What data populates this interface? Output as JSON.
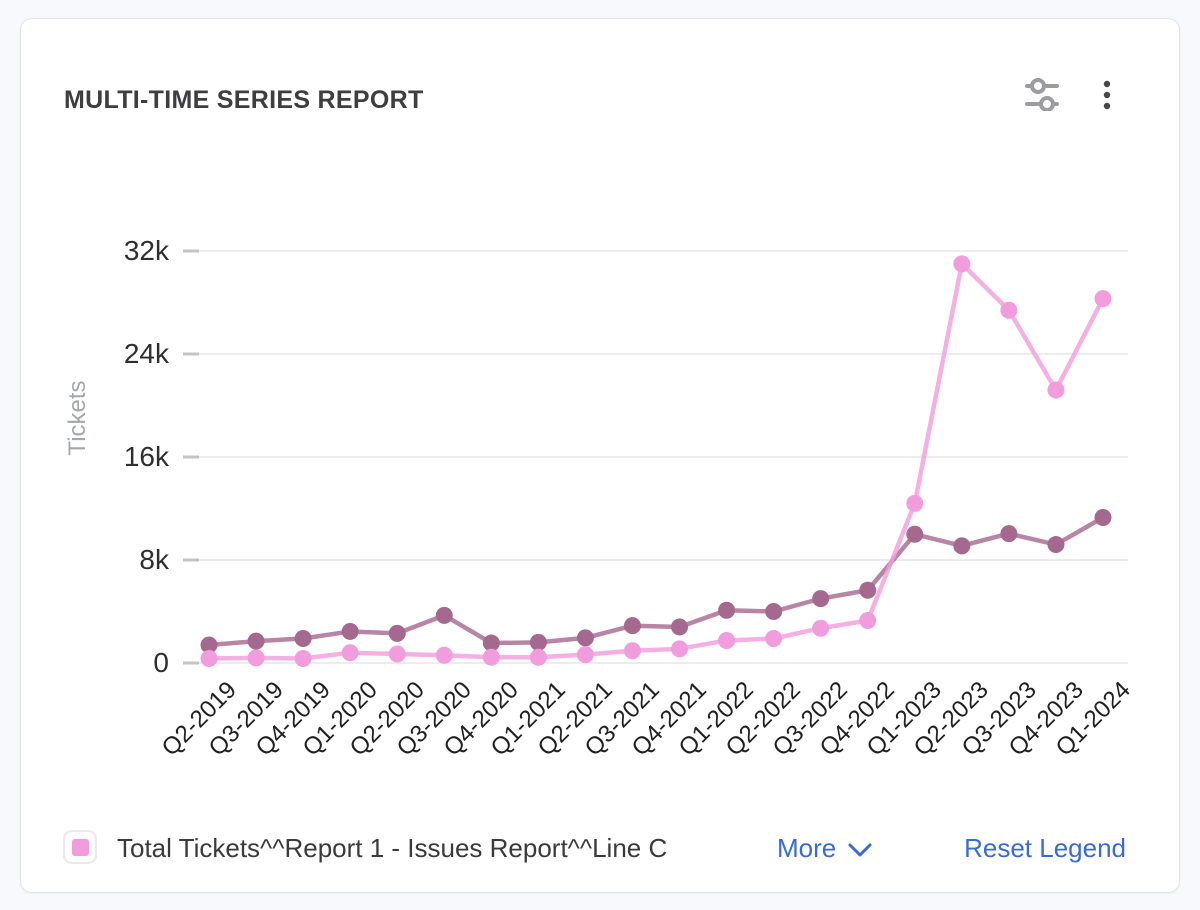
{
  "header": {
    "title": "MULTI-TIME SERIES REPORT",
    "icons": [
      "filters-icon",
      "kebab-menu-icon"
    ]
  },
  "legend": {
    "label": "Total Tickets^^Report 1 - Issues Report^^Line C",
    "swatch_color": "#F19CDC",
    "more_label": "More",
    "reset_label": "Reset Legend"
  },
  "colors": {
    "page_bg": "#F8F9FC",
    "card_border": "#E3E4E8",
    "title_text": "#3E3E40",
    "axis_text": "#2E2E30",
    "muted_text": "#A4A7AC",
    "legend_text": "#3A3A3C",
    "grid": "#ECECEE",
    "tick": "#C5C5C8",
    "link": "#3A6BD4",
    "series_pink": "#F19CDC",
    "series_mauve": "#A5688E",
    "icon_gray": "#9B9BA0",
    "menu_dark": "#48484B"
  },
  "chart_data": {
    "type": "line",
    "title": "MULTI-TIME SERIES REPORT",
    "xlabel": "",
    "ylabel": "Tickets",
    "ylim": [
      0,
      32000
    ],
    "yticks": [
      "0",
      "8k",
      "16k",
      "24k",
      "32k"
    ],
    "ytick_values": [
      0,
      8000,
      16000,
      24000,
      32000
    ],
    "grid": true,
    "legend_position": "bottom",
    "categories": [
      "Q2-2019",
      "Q3-2019",
      "Q4-2019",
      "Q1-2020",
      "Q2-2020",
      "Q3-2020",
      "Q4-2020",
      "Q1-2021",
      "Q2-2021",
      "Q3-2021",
      "Q4-2021",
      "Q1-2022",
      "Q2-2022",
      "Q3-2022",
      "Q4-2022",
      "Q1-2023",
      "Q2-2023",
      "Q3-2023",
      "Q4-2023",
      "Q1-2024"
    ],
    "series": [
      {
        "name": "Total Tickets^^Report 1 - Issues Report^^Line C",
        "color": "#F19CDC",
        "values": [
          350,
          400,
          350,
          800,
          700,
          600,
          450,
          450,
          650,
          950,
          1100,
          1750,
          1900,
          2700,
          3300,
          12400,
          31000,
          27400,
          21200,
          28300
        ]
      },
      {
        "name": "",
        "color": "#A5688E",
        "values": [
          1400,
          1700,
          1900,
          2450,
          2300,
          3700,
          1550,
          1600,
          1950,
          2900,
          2800,
          4100,
          4000,
          5000,
          5650,
          10000,
          9100,
          10050,
          9200,
          11300
        ]
      }
    ]
  }
}
